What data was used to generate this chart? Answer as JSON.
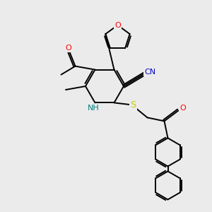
{
  "background_color": "#ebebeb",
  "atom_colors": {
    "C": "#000000",
    "N": "#0000cc",
    "O": "#ff0000",
    "S": "#cccc00",
    "NH": "#008080"
  },
  "figsize": [
    3.0,
    3.0
  ],
  "dpi": 100,
  "lw": 1.4,
  "fontsize": 8.0
}
